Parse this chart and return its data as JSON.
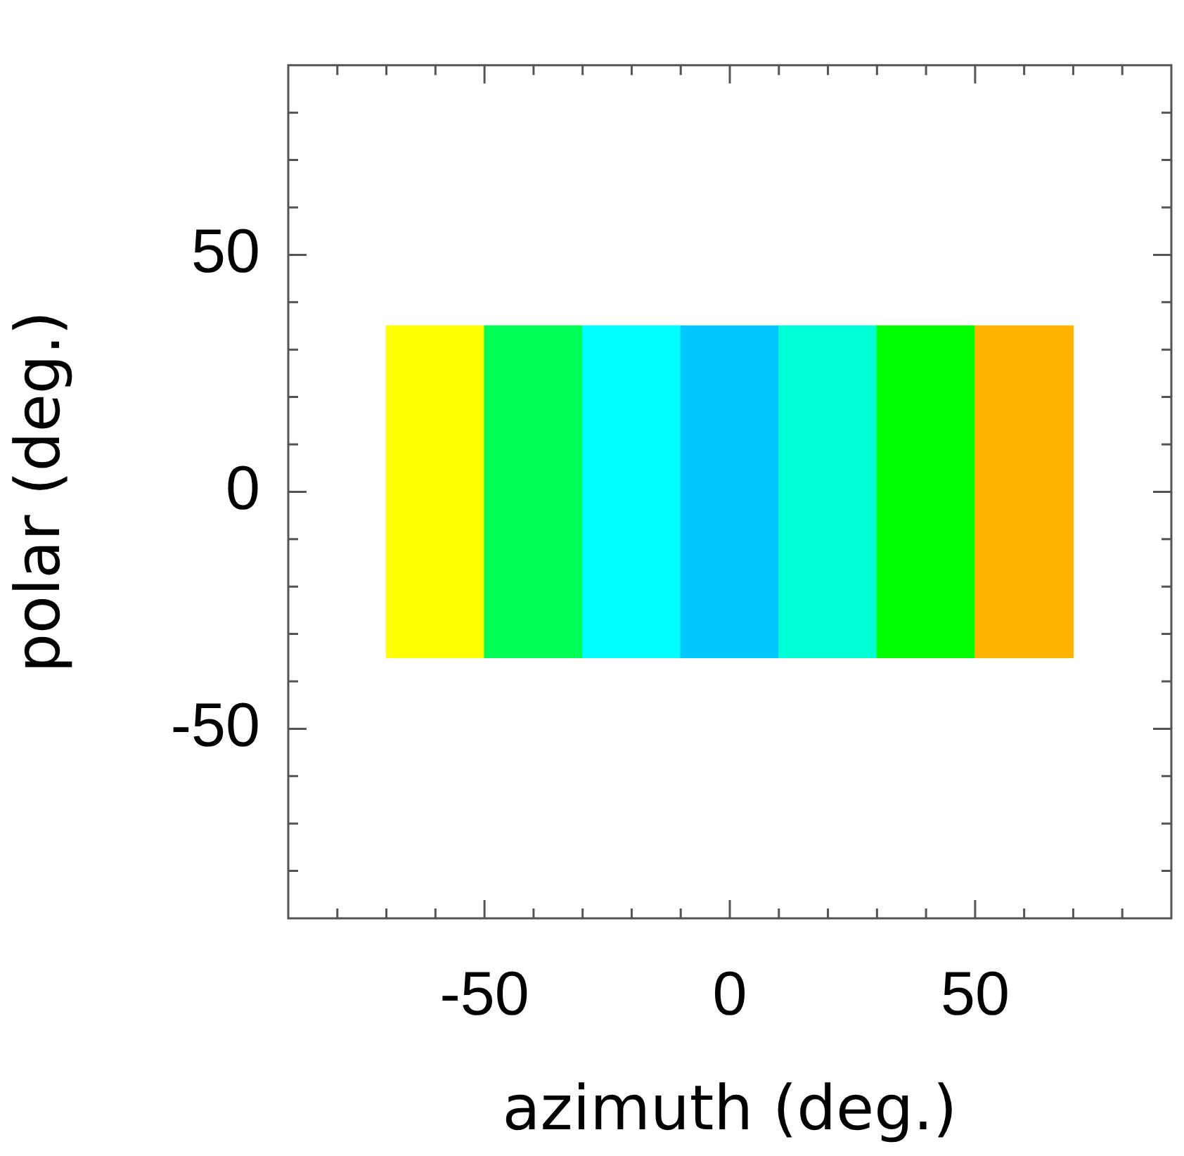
{
  "chart_data": {
    "type": "bar",
    "xlabel": "azimuth (deg.)",
    "ylabel": "polar (deg.)",
    "x": [
      -60,
      -40,
      -20,
      0,
      20,
      40,
      60
    ],
    "values": [
      70,
      70,
      70,
      70,
      70,
      70,
      70
    ],
    "base": [
      -35,
      -35,
      -35,
      -35,
      -35,
      -35,
      -35
    ],
    "colors": [
      "#ffff00",
      "#00ff55",
      "#00ffff",
      "#00c8ff",
      "#00ffd5",
      "#00ff00",
      "#ffb400"
    ],
    "xlim": [
      -90,
      90
    ],
    "ylim": [
      -90,
      90
    ],
    "xticks": [
      {
        "value": -80,
        "label": null
      },
      {
        "value": -70,
        "label": null
      },
      {
        "value": -60,
        "label": null
      },
      -50,
      {
        "value": -40,
        "label": null
      },
      {
        "value": -30,
        "label": null
      },
      {
        "value": -20,
        "label": null
      },
      {
        "value": -10,
        "label": null
      },
      0,
      {
        "value": 10,
        "label": null
      },
      {
        "value": 20,
        "label": null
      },
      {
        "value": 30,
        "label": null
      },
      {
        "value": 40,
        "label": null
      },
      50,
      {
        "value": 60,
        "label": null
      },
      {
        "value": 70,
        "label": null
      },
      {
        "value": 80,
        "label": null
      }
    ],
    "yticks": [
      {
        "value": -80,
        "label": null
      },
      {
        "value": -70,
        "label": null
      },
      {
        "value": -60,
        "label": null
      },
      -50,
      {
        "value": -40,
        "label": null
      },
      {
        "value": -30,
        "label": null
      },
      {
        "value": -20,
        "label": null
      },
      {
        "value": -10,
        "label": null
      },
      0,
      {
        "value": 10,
        "label": null
      },
      {
        "value": 20,
        "label": null
      },
      {
        "value": 30,
        "label": null
      },
      {
        "value": 40,
        "label": null
      },
      50,
      {
        "value": 60,
        "label": null
      },
      {
        "value": 70,
        "label": null
      },
      {
        "value": 80,
        "label": null
      }
    ]
  }
}
